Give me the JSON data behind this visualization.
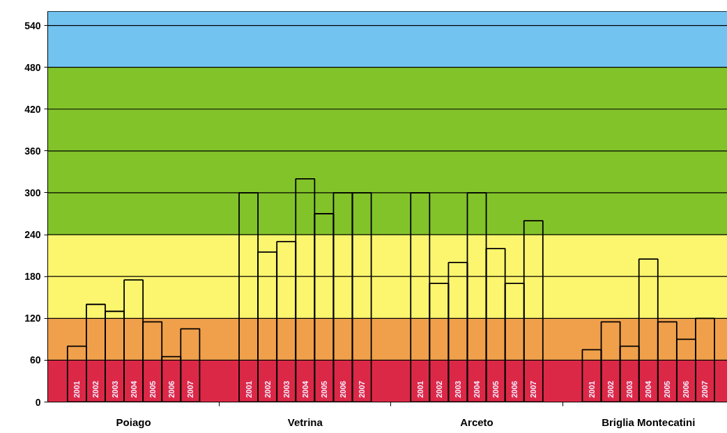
{
  "chart_data": {
    "type": "bar",
    "categories": [
      "Poiago",
      "Vetrina",
      "Arceto",
      "Briglia Montecatini"
    ],
    "series": [
      {
        "name": "2001",
        "color": "#000000",
        "values": [
          80,
          300,
          300,
          75
        ]
      },
      {
        "name": "2002",
        "color": "#000000",
        "values": [
          140,
          215,
          170,
          115
        ]
      },
      {
        "name": "2003",
        "color": "#000000",
        "values": [
          130,
          230,
          200,
          80
        ]
      },
      {
        "name": "2004",
        "color": "#000000",
        "values": [
          175,
          320,
          300,
          205
        ]
      },
      {
        "name": "2005",
        "color": "#000000",
        "values": [
          115,
          270,
          220,
          115
        ]
      },
      {
        "name": "2006",
        "color": "#000000",
        "values": [
          65,
          300,
          170,
          90
        ]
      },
      {
        "name": "2007",
        "color": "#000000",
        "values": [
          105,
          300,
          260,
          120
        ]
      }
    ],
    "ylim": [
      0,
      560
    ],
    "yticks": [
      0,
      60,
      120,
      180,
      240,
      300,
      360,
      420,
      480,
      540
    ],
    "grid": "y",
    "bands": [
      {
        "axis": "y",
        "from": 0,
        "to": 60,
        "color": "#dc2847"
      },
      {
        "axis": "y",
        "from": 60,
        "to": 120,
        "color": "#f0a04b"
      },
      {
        "axis": "y",
        "from": 120,
        "to": 240,
        "color": "#fcf56e"
      },
      {
        "axis": "y",
        "from": 240,
        "to": 480,
        "color": "#82c32a"
      },
      {
        "axis": "y",
        "from": 480,
        "to": 560,
        "color": "#73c3f0"
      }
    ]
  }
}
